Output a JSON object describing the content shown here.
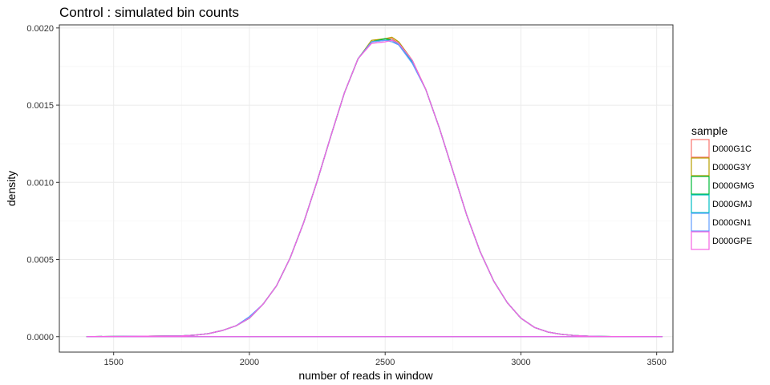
{
  "chart_data": {
    "type": "line",
    "title": "Control : simulated bin counts",
    "xlabel": "number of reads in window",
    "ylabel": "density",
    "xlim": [
      1300,
      3560
    ],
    "ylim": [
      -0.0001,
      0.00202
    ],
    "xticks": [
      {
        "value": 1500,
        "label": "1500"
      },
      {
        "value": 2000,
        "label": "2000"
      },
      {
        "value": 2500,
        "label": "2500"
      },
      {
        "value": 3000,
        "label": "3000"
      },
      {
        "value": 3500,
        "label": "3500"
      }
    ],
    "yticks": [
      {
        "value": 0.0,
        "label": "0.0000"
      },
      {
        "value": 0.0005,
        "label": "0.0005"
      },
      {
        "value": 0.001,
        "label": "0.0010"
      },
      {
        "value": 0.0015,
        "label": "0.0015"
      },
      {
        "value": 0.002,
        "label": "0.0020"
      }
    ],
    "grid": true,
    "legend_title": "sample",
    "legend_position": "right",
    "series": [
      {
        "name": "D000G1C",
        "color": "#F8766D",
        "x": [
          1400,
          1750,
          1800,
          1850,
          1900,
          1950,
          2000,
          2050,
          2100,
          2150,
          2200,
          2250,
          2300,
          2350,
          2400,
          2450,
          2500,
          2525,
          2550,
          2600,
          2650,
          2700,
          2750,
          2800,
          2850,
          2900,
          2950,
          3000,
          3050,
          3100,
          3150,
          3200,
          3250,
          3300,
          3520
        ],
        "y": [
          0,
          5e-06,
          1e-05,
          2e-05,
          4e-05,
          7e-05,
          0.00012,
          0.00021,
          0.00033,
          0.00051,
          0.00074,
          0.00101,
          0.0013,
          0.00158,
          0.0018,
          0.00191,
          0.00193,
          0.00193,
          0.0019,
          0.00179,
          0.0016,
          0.00135,
          0.00107,
          0.00079,
          0.00055,
          0.00036,
          0.00022,
          0.00012,
          6e-05,
          3e-05,
          1.5e-05,
          7e-06,
          3e-06,
          1e-06,
          0
        ]
      },
      {
        "name": "D000G3Y",
        "color": "#B79F00",
        "x": [
          1400,
          1750,
          1800,
          1850,
          1900,
          1950,
          2000,
          2050,
          2100,
          2150,
          2200,
          2250,
          2300,
          2350,
          2400,
          2450,
          2500,
          2525,
          2550,
          2600,
          2650,
          2700,
          2750,
          2800,
          2850,
          2900,
          2950,
          3000,
          3050,
          3100,
          3150,
          3200,
          3250,
          3300,
          3520
        ],
        "y": [
          0,
          5e-06,
          1e-05,
          2e-05,
          4e-05,
          7e-05,
          0.00012,
          0.00021,
          0.00033,
          0.00051,
          0.00074,
          0.00101,
          0.0013,
          0.00158,
          0.0018,
          0.00192,
          0.00193,
          0.00194,
          0.00191,
          0.00179,
          0.0016,
          0.00135,
          0.00107,
          0.00079,
          0.00055,
          0.00036,
          0.00022,
          0.00012,
          6e-05,
          3e-05,
          1.5e-05,
          7e-06,
          3e-06,
          1e-06,
          0
        ]
      },
      {
        "name": "D000GMG",
        "color": "#00BA38",
        "x": [
          1400,
          1750,
          1800,
          1850,
          1900,
          1950,
          2000,
          2050,
          2100,
          2150,
          2200,
          2250,
          2300,
          2350,
          2400,
          2450,
          2500,
          2525,
          2550,
          2600,
          2650,
          2700,
          2750,
          2800,
          2850,
          2900,
          2950,
          3000,
          3050,
          3100,
          3150,
          3200,
          3250,
          3300,
          3520
        ],
        "y": [
          0,
          5e-06,
          1e-05,
          2e-05,
          4e-05,
          7e-05,
          0.00012,
          0.00021,
          0.00033,
          0.00051,
          0.00074,
          0.00101,
          0.0013,
          0.00158,
          0.0018,
          0.00191,
          0.00193,
          0.00192,
          0.0019,
          0.00178,
          0.0016,
          0.00135,
          0.00107,
          0.00079,
          0.00055,
          0.00036,
          0.00022,
          0.00012,
          6e-05,
          3e-05,
          1.5e-05,
          7e-06,
          3e-06,
          1e-06,
          0
        ]
      },
      {
        "name": "D000GMJ",
        "color": "#00BFC4",
        "x": [
          1400,
          1750,
          1800,
          1850,
          1900,
          1950,
          2000,
          2050,
          2100,
          2150,
          2200,
          2250,
          2300,
          2350,
          2400,
          2450,
          2500,
          2525,
          2550,
          2600,
          2650,
          2700,
          2750,
          2800,
          2850,
          2900,
          2950,
          3000,
          3050,
          3100,
          3150,
          3200,
          3250,
          3300,
          3520
        ],
        "y": [
          0,
          5e-06,
          1e-05,
          2e-05,
          4e-05,
          7e-05,
          0.00012,
          0.00021,
          0.00033,
          0.00051,
          0.00074,
          0.00101,
          0.0013,
          0.00158,
          0.0018,
          0.00191,
          0.00192,
          0.00192,
          0.00189,
          0.00178,
          0.0016,
          0.00135,
          0.00107,
          0.00079,
          0.00055,
          0.00036,
          0.00022,
          0.00012,
          6e-05,
          3e-05,
          1.5e-05,
          7e-06,
          3e-06,
          1e-06,
          0
        ]
      },
      {
        "name": "D000GN1",
        "color": "#619CFF",
        "x": [
          1400,
          1750,
          1800,
          1850,
          1900,
          1950,
          2000,
          2050,
          2100,
          2150,
          2200,
          2250,
          2300,
          2350,
          2400,
          2450,
          2500,
          2525,
          2550,
          2600,
          2650,
          2700,
          2750,
          2800,
          2850,
          2900,
          2950,
          3000,
          3050,
          3100,
          3150,
          3200,
          3250,
          3300,
          3520
        ],
        "y": [
          0,
          5e-06,
          1e-05,
          2e-05,
          4e-05,
          7e-05,
          0.00013,
          0.00021,
          0.00033,
          0.00051,
          0.00074,
          0.00101,
          0.0013,
          0.00158,
          0.0018,
          0.00191,
          0.00192,
          0.00191,
          0.00189,
          0.00177,
          0.0016,
          0.00135,
          0.00107,
          0.00079,
          0.00055,
          0.00036,
          0.00022,
          0.00012,
          6e-05,
          3e-05,
          1.5e-05,
          7e-06,
          3e-06,
          1e-06,
          0
        ]
      },
      {
        "name": "D000GPE",
        "color": "#F564E3",
        "x": [
          1400,
          1750,
          1800,
          1850,
          1900,
          1950,
          2000,
          2050,
          2100,
          2150,
          2200,
          2250,
          2300,
          2350,
          2400,
          2450,
          2500,
          2525,
          2550,
          2600,
          2650,
          2700,
          2750,
          2800,
          2850,
          2900,
          2950,
          3000,
          3050,
          3100,
          3150,
          3200,
          3250,
          3300,
          3520
        ],
        "y": [
          0,
          5e-06,
          1e-05,
          2e-05,
          4e-05,
          7e-05,
          0.00012,
          0.00021,
          0.00033,
          0.00051,
          0.00074,
          0.00101,
          0.0013,
          0.00158,
          0.0018,
          0.0019,
          0.00191,
          0.00192,
          0.0019,
          0.00179,
          0.0016,
          0.00135,
          0.00107,
          0.00079,
          0.00055,
          0.00036,
          0.00022,
          0.00012,
          6e-05,
          3e-05,
          1.5e-05,
          7e-06,
          3e-06,
          1e-06,
          0
        ]
      }
    ]
  }
}
